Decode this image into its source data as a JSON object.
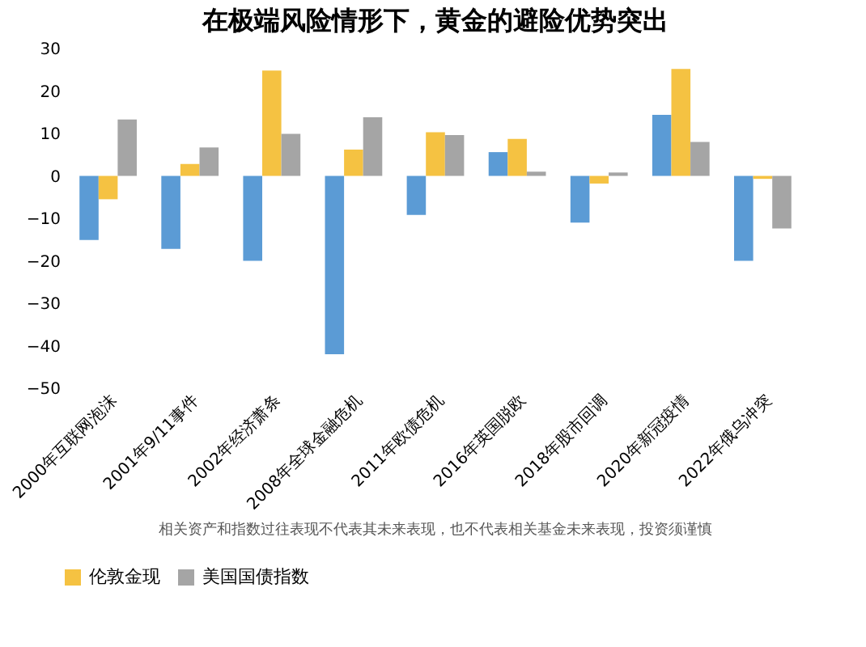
{
  "chart_data": {
    "type": "bar",
    "title": "在极端风险情形下，黄金的避险优势突出",
    "categories": [
      "2000年互联网泡沫",
      "2001年9/11事件",
      "2002年经济萧条",
      "2008年全球金融危机",
      "2011年欧债危机",
      "2016年英国脱欧",
      "2018年股市回调",
      "2020年新冠疫情",
      "2022年俄乌冲突"
    ],
    "series": [
      {
        "color": "#5b9bd5",
        "values": [
          -15.1,
          -17.2,
          -20,
          -42,
          -9.2,
          5.6,
          -11,
          14.4,
          -20
        ]
      },
      {
        "name": "伦敦金现",
        "color": "#f5c242",
        "values": [
          -5.5,
          2.8,
          24.8,
          6.2,
          10.3,
          8.7,
          -1.8,
          25.2,
          -0.7
        ]
      },
      {
        "name": "美国国债指数",
        "color": "#a5a5a5",
        "values": [
          13.3,
          6.7,
          9.9,
          13.8,
          9.6,
          1,
          0.8,
          8,
          -12.4
        ]
      }
    ],
    "ylim": [
      -50,
      30
    ],
    "yticks": [
      -50,
      -40,
      -30,
      -20,
      -10,
      0,
      10,
      20,
      30
    ],
    "legend": "bottom",
    "annotations": [
      "相关资产和指数过往表现不代表其未来表现，也不代表相关基金未来表现，投资须谨慎"
    ]
  }
}
